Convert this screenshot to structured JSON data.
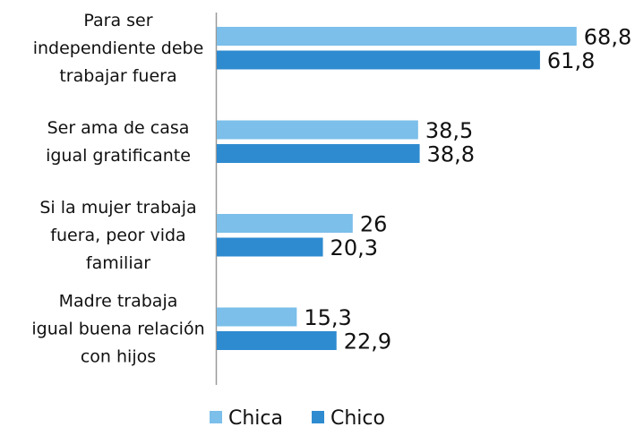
{
  "chart_data": {
    "type": "bar",
    "orientation": "horizontal",
    "categories": [
      "Para ser\nindependiente debe\ntrabajar fuera",
      "Ser ama de casa\nigual gratificante",
      "Si la mujer trabaja\nfuera, peor vida\nfamiliar",
      "Madre trabaja\nigual buena relación\ncon hijos"
    ],
    "series": [
      {
        "name": "Chica",
        "color": "#7bbfea",
        "values": [
          68.8,
          38.5,
          26,
          15.3
        ],
        "value_labels": [
          "68,8",
          "38,5",
          "26",
          "15,3"
        ]
      },
      {
        "name": "Chico",
        "color": "#2e8bd0",
        "values": [
          61.8,
          38.8,
          20.3,
          22.9
        ],
        "value_labels": [
          "61,8",
          "38,8",
          "20,3",
          "22,9"
        ]
      }
    ],
    "legend": "bottom"
  }
}
